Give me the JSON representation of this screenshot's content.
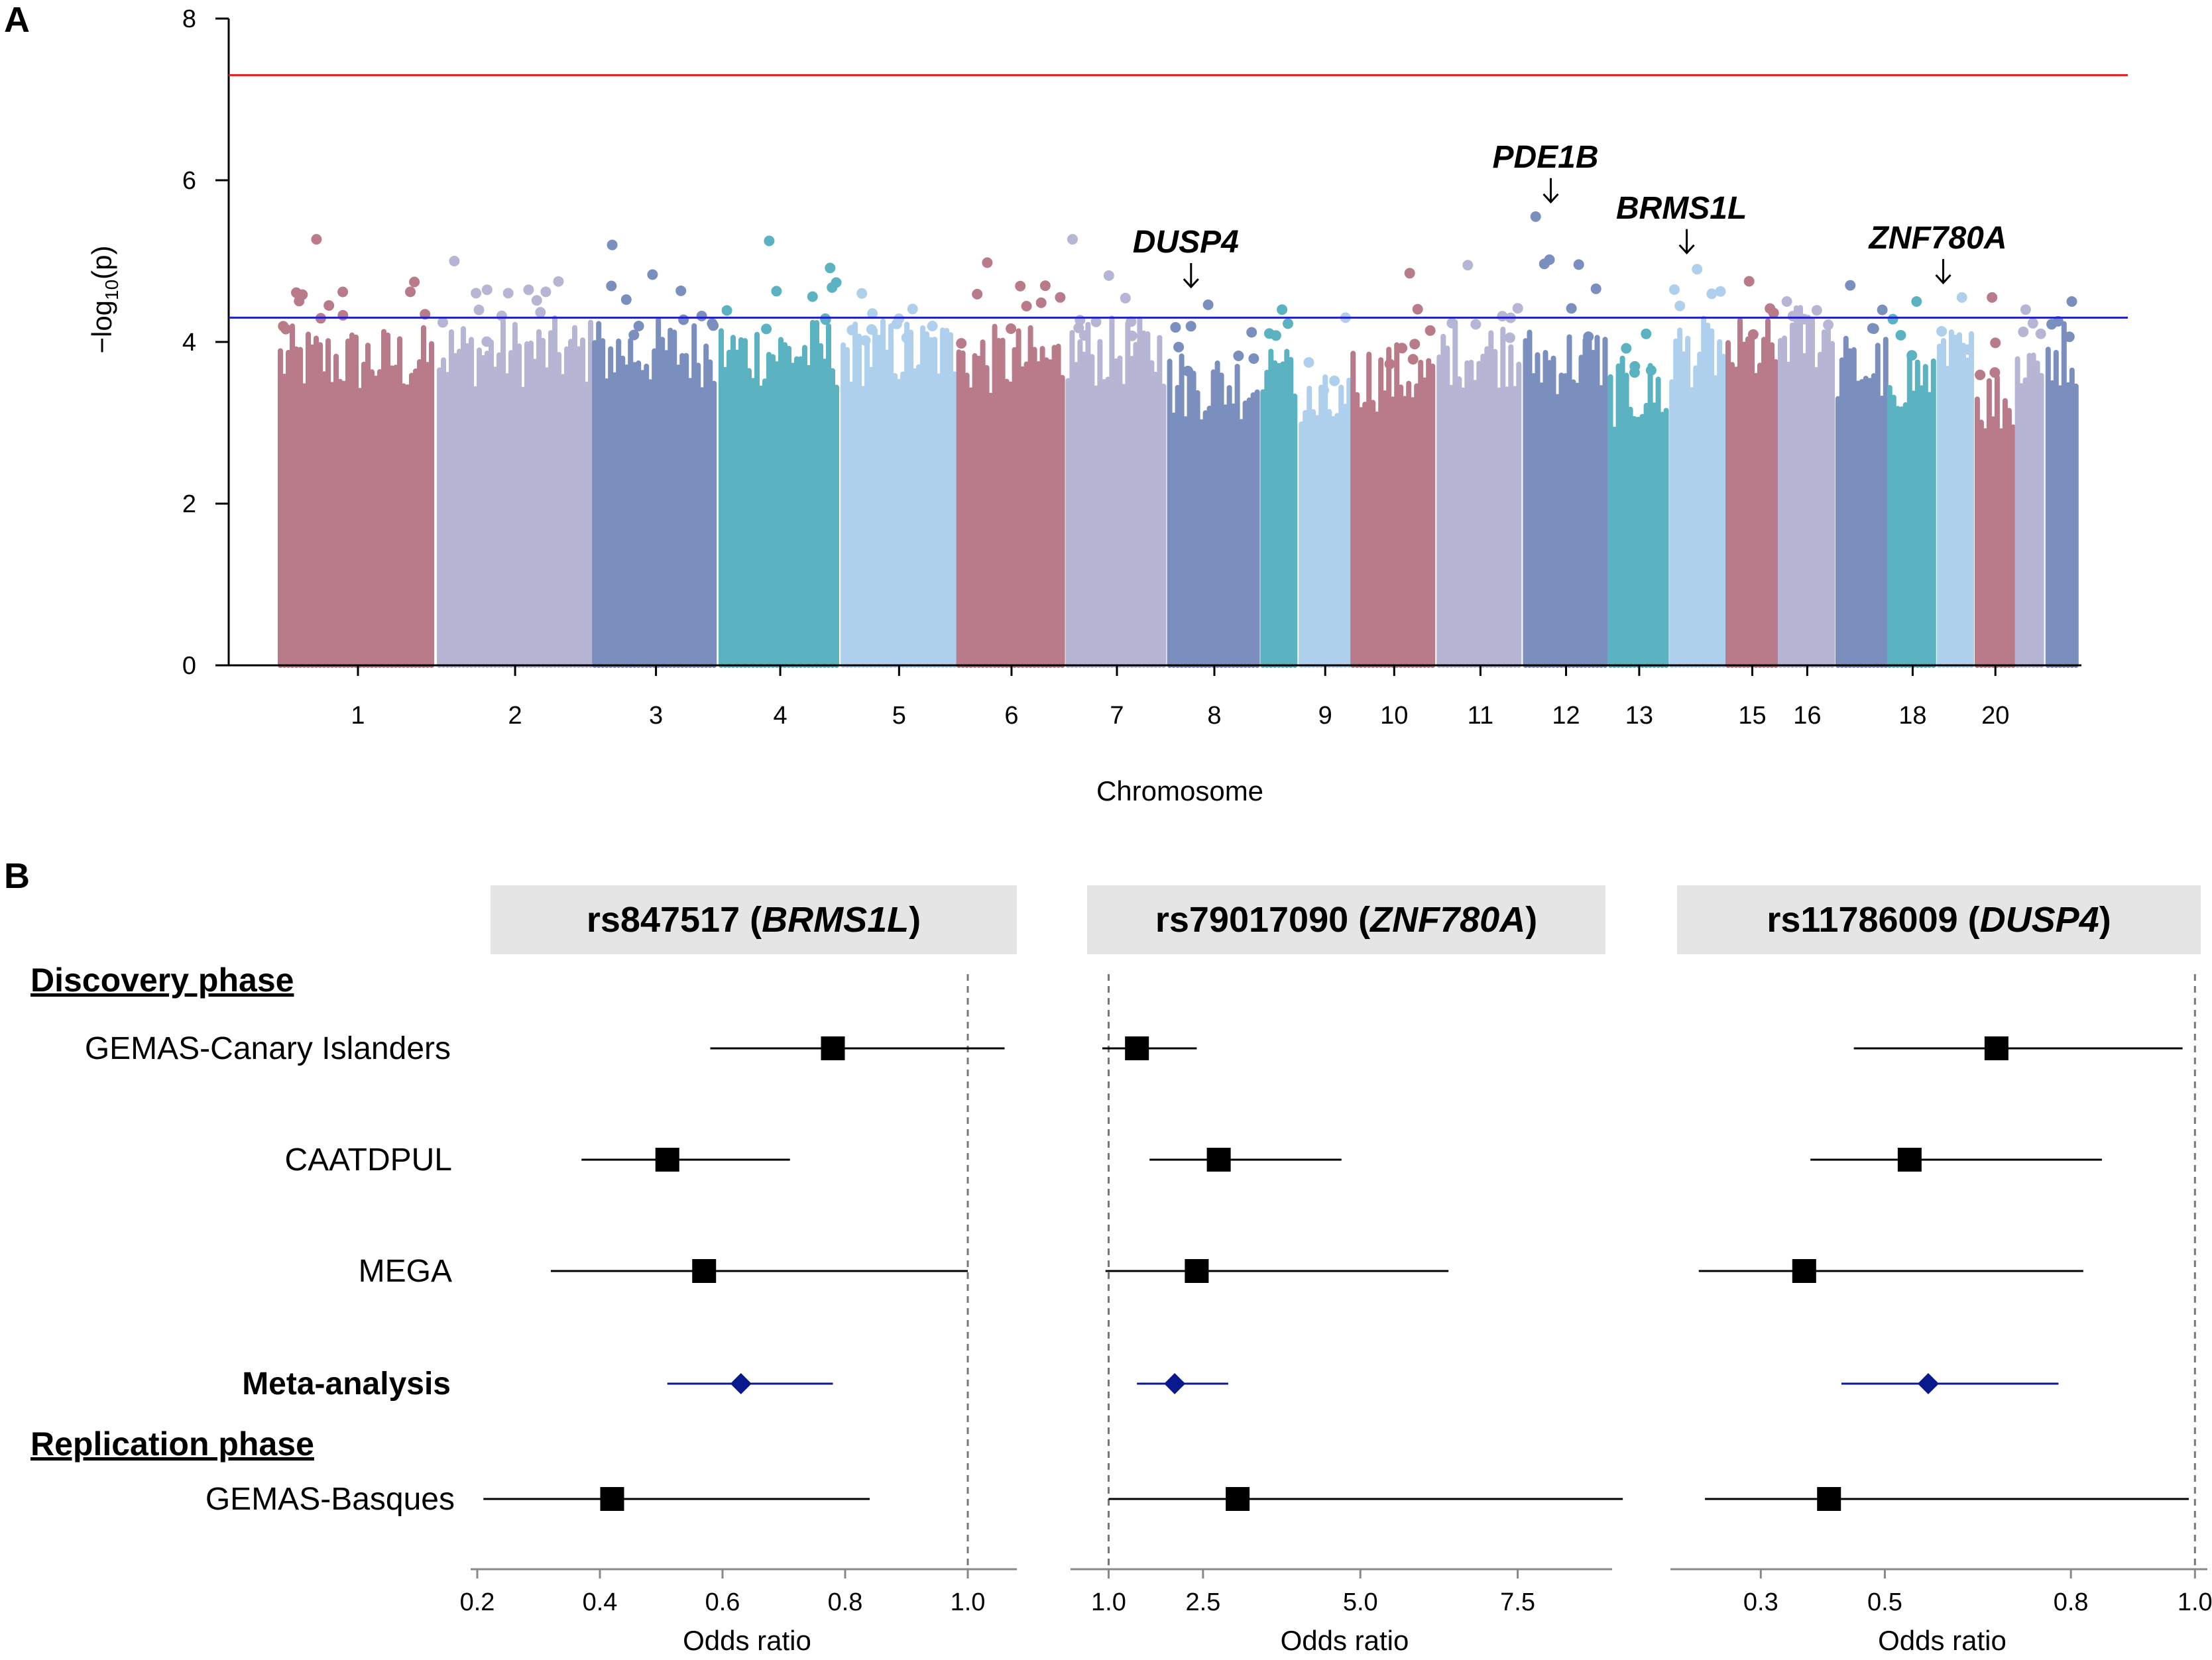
{
  "panel_a_label": "A",
  "panel_b_label": "B",
  "colors": {
    "red": "#e41a1c",
    "blue": "#1f1fd1",
    "meta": "#0a1a8c",
    "strip": "#e5e5e5",
    "chrom_palette": [
      "#b97a8a",
      "#b7b5d4",
      "#7a8fbd",
      "#5bb3c2",
      "#aed0ec"
    ]
  },
  "chart_data": [
    {
      "type": "scatter",
      "subtype": "manhattan",
      "title": "",
      "xlabel": "Chromosome",
      "ylabel_prefix": "−log",
      "ylabel_sub": "10",
      "ylabel_suffix": "(p)",
      "ylim": [
        0,
        8
      ],
      "yticks": [
        "0",
        "2",
        "4",
        "6",
        "8"
      ],
      "thresholds": {
        "genome_wide": 7.3,
        "suggestive": 4.3
      },
      "chromosomes": [
        {
          "label": "1",
          "size": 249,
          "top": 5.27,
          "body": 4.2
        },
        {
          "label": "2",
          "size": 243,
          "top": 5.0,
          "body": 4.3
        },
        {
          "label": "3",
          "size": 198,
          "top": 5.2,
          "body": 4.3
        },
        {
          "label": "4",
          "size": 191,
          "top": 5.25,
          "body": 4.3
        },
        {
          "label": "5",
          "size": 181,
          "top": 4.6,
          "body": 4.3
        },
        {
          "label": "6",
          "size": 171,
          "top": 4.98,
          "body": 4.2
        },
        {
          "label": "7",
          "size": 159,
          "top": 5.27,
          "body": 4.3
        },
        {
          "label": "8",
          "size": 146,
          "top": 4.46,
          "body": 3.9
        },
        {
          "label": "",
          "size": 60,
          "top": 4.4,
          "body": 4.2
        },
        {
          "label": "9",
          "size": 81,
          "top": 4.3,
          "body": 3.6
        },
        {
          "label": "10",
          "size": 135,
          "top": 4.85,
          "body": 4.0
        },
        {
          "label": "11",
          "size": 135,
          "top": 4.95,
          "body": 4.3
        },
        {
          "label": "12",
          "size": 133,
          "top": 5.55,
          "body": 4.2
        },
        {
          "label": "13",
          "size": 96,
          "top": 4.1,
          "body": 3.8
        },
        {
          "label": "",
          "size": 88,
          "top": 4.9,
          "body": 4.3
        },
        {
          "label": "15",
          "size": 82,
          "top": 4.75,
          "body": 4.3
        },
        {
          "label": "16",
          "size": 90,
          "top": 4.5,
          "body": 4.5
        },
        {
          "label": "",
          "size": 81,
          "top": 4.7,
          "body": 4.1
        },
        {
          "label": "18",
          "size": 78,
          "top": 4.5,
          "body": 4.0
        },
        {
          "label": "",
          "size": 59,
          "top": 4.55,
          "body": 4.2
        },
        {
          "label": "20",
          "size": 63,
          "top": 4.55,
          "body": 3.7
        },
        {
          "label": "",
          "size": 48,
          "top": 4.4,
          "body": 4.2
        },
        {
          "label": "",
          "size": 51,
          "top": 4.5,
          "body": 4.3
        }
      ],
      "annotations": [
        {
          "gene": "DUSP4",
          "chrom_index": 7,
          "pos": 0.25,
          "value": 4.5
        },
        {
          "gene": "PDE1B",
          "chrom_index": 12,
          "pos": 0.32,
          "value": 5.55
        },
        {
          "gene": "BRMS1L",
          "chrom_index": 14,
          "pos": 0.3,
          "value": 4.92
        },
        {
          "gene": "ZNF780A",
          "chrom_index": 19,
          "pos": 0.15,
          "value": 4.55
        }
      ]
    },
    {
      "type": "forest",
      "xlabel": "Odds ratio",
      "row_labels": [
        "GEMAS-Canary Islanders",
        "CAATDPUL",
        "MEGA",
        "Meta-analysis",
        "GEMAS-Basques"
      ],
      "phase_labels": {
        "discovery": "Discovery phase",
        "replication": "Replication phase"
      },
      "panels": [
        {
          "snp": "rs847517",
          "gene": "BRMS1L",
          "xlim": [
            0.2,
            1.08
          ],
          "ticks": [
            0.2,
            0.4,
            0.6,
            0.8,
            1.0
          ],
          "tick_labels": [
            "0.2",
            "0.4",
            "0.6",
            "0.8",
            "1.0"
          ],
          "reference": 1.0,
          "rows": [
            {
              "or": 0.78,
              "lo": 0.58,
              "hi": 1.06
            },
            {
              "or": 0.51,
              "lo": 0.37,
              "hi": 0.71
            },
            {
              "or": 0.57,
              "lo": 0.32,
              "hi": 1.0
            },
            {
              "or": 0.63,
              "lo": 0.51,
              "hi": 0.78
            },
            {
              "or": 0.42,
              "lo": 0.21,
              "hi": 0.84
            }
          ]
        },
        {
          "snp": "rs79017090",
          "gene": "ZNF780A",
          "xlim": [
            0.5,
            9.0
          ],
          "ticks": [
            1.0,
            2.5,
            5.0,
            7.5
          ],
          "tick_labels": [
            "1.0",
            "2.5",
            "5.0",
            "7.5"
          ],
          "reference": 1.0,
          "rows": [
            {
              "or": 1.45,
              "lo": 0.9,
              "hi": 2.4
            },
            {
              "or": 2.75,
              "lo": 1.65,
              "hi": 4.7
            },
            {
              "or": 2.4,
              "lo": 0.95,
              "hi": 6.4
            },
            {
              "or": 2.05,
              "lo": 1.45,
              "hi": 2.9
            },
            {
              "or": 3.05,
              "lo": 1.0,
              "hi": 9.2
            }
          ]
        },
        {
          "snp": "rs11786009",
          "gene": "DUSP4",
          "xlim": [
            0.165,
            1.02
          ],
          "ticks": [
            0.3,
            0.5,
            0.8,
            1.0
          ],
          "tick_labels": [
            "0.3",
            "0.5",
            "0.8",
            "1.0"
          ],
          "reference": 1.0,
          "rows": [
            {
              "or": 0.68,
              "lo": 0.45,
              "hi": 0.98
            },
            {
              "or": 0.54,
              "lo": 0.38,
              "hi": 0.85
            },
            {
              "or": 0.37,
              "lo": 0.2,
              "hi": 0.82
            },
            {
              "or": 0.57,
              "lo": 0.43,
              "hi": 0.78
            },
            {
              "or": 0.41,
              "lo": 0.21,
              "hi": 0.99
            }
          ]
        }
      ]
    }
  ]
}
